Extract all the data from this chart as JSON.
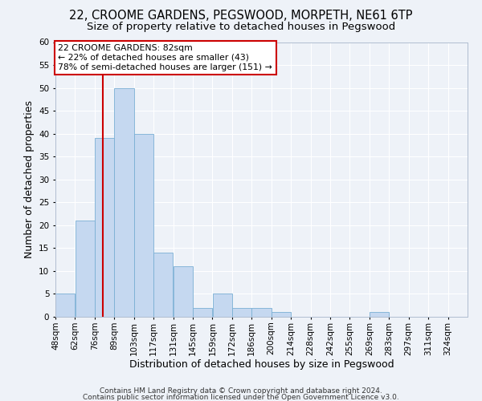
{
  "title": "22, CROOME GARDENS, PEGSWOOD, MORPETH, NE61 6TP",
  "subtitle": "Size of property relative to detached houses in Pegswood",
  "xlabel": "Distribution of detached houses by size in Pegswood",
  "ylabel": "Number of detached properties",
  "bar_labels": [
    "48sqm",
    "62sqm",
    "76sqm",
    "89sqm",
    "103sqm",
    "117sqm",
    "131sqm",
    "145sqm",
    "159sqm",
    "172sqm",
    "186sqm",
    "200sqm",
    "214sqm",
    "228sqm",
    "242sqm",
    "255sqm",
    "269sqm",
    "283sqm",
    "297sqm",
    "311sqm",
    "324sqm"
  ],
  "bar_values": [
    5,
    21,
    39,
    50,
    40,
    14,
    11,
    2,
    5,
    2,
    2,
    1,
    0,
    0,
    0,
    0,
    1,
    0,
    0,
    0,
    0
  ],
  "bar_color": "#c5d8f0",
  "bar_edge_color": "#7aafd4",
  "ylim": [
    0,
    60
  ],
  "yticks": [
    0,
    5,
    10,
    15,
    20,
    25,
    30,
    35,
    40,
    45,
    50,
    55,
    60
  ],
  "vline_color": "#cc0000",
  "annotation_title": "22 CROOME GARDENS: 82sqm",
  "annotation_line1": "← 22% of detached houses are smaller (43)",
  "annotation_line2": "78% of semi-detached houses are larger (151) →",
  "annotation_box_color": "#ffffff",
  "annotation_box_edge": "#cc0000",
  "footer1": "Contains HM Land Registry data © Crown copyright and database right 2024.",
  "footer2": "Contains public sector information licensed under the Open Government Licence v3.0.",
  "bg_color": "#eef2f8",
  "grid_color": "#ffffff",
  "title_fontsize": 10.5,
  "subtitle_fontsize": 9.5,
  "axis_label_fontsize": 9,
  "tick_fontsize": 7.5,
  "footer_fontsize": 6.5,
  "bin_width": 14,
  "n_bins": 21,
  "vline_xval": 82
}
